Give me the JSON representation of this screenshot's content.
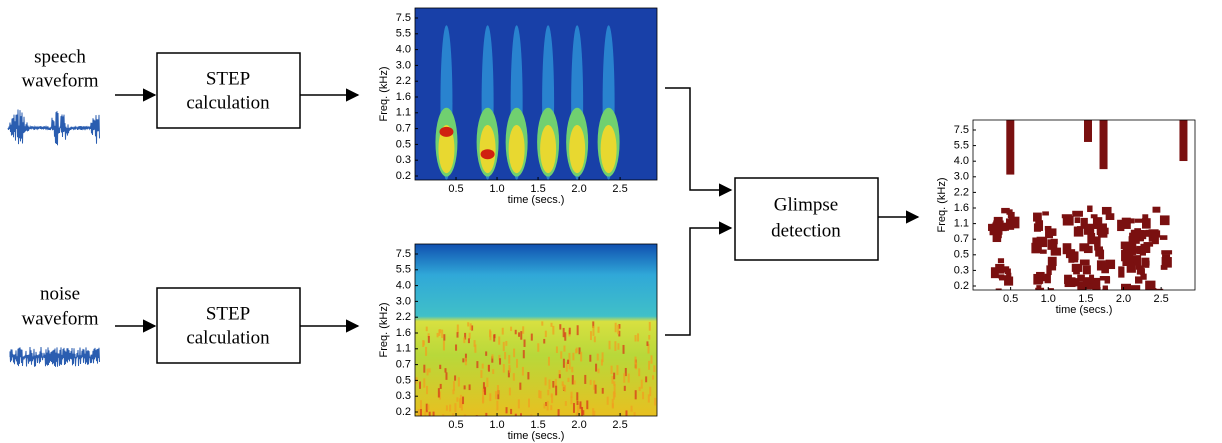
{
  "inputs": [
    {
      "label": [
        "speech",
        "waveform"
      ],
      "process": [
        "STEP",
        "calculation"
      ]
    },
    {
      "label": [
        "noise",
        "waveform"
      ],
      "process": [
        "STEP",
        "calculation"
      ]
    }
  ],
  "detector": [
    "Glimpse",
    "detection"
  ],
  "plots": [
    {
      "ylabel": "Freq. (kHz)",
      "xlabel": "time (secs.)",
      "yticks": [
        "0.2",
        "0.3",
        "0.5",
        "0.7",
        "1.1",
        "1.6",
        "2.2",
        "3.0",
        "4.0",
        "5.5",
        "7.5"
      ],
      "xticks": [
        "0.5",
        "1.0",
        "1.5",
        "2.0",
        "2.5"
      ]
    },
    {
      "ylabel": "Freq. (kHz)",
      "xlabel": "time (secs.)",
      "yticks": [
        "0.2",
        "0.3",
        "0.5",
        "0.7",
        "1.1",
        "1.6",
        "2.2",
        "3.0",
        "4.0",
        "5.5",
        "7.5"
      ],
      "xticks": [
        "0.5",
        "1.0",
        "1.5",
        "2.0",
        "2.5"
      ]
    },
    {
      "ylabel": "Freq. (kHz)",
      "xlabel": "time (secs.)",
      "yticks": [
        "0.2",
        "0.3",
        "0.5",
        "0.7",
        "1.1",
        "1.6",
        "2.2",
        "3.0",
        "4.0",
        "5.5",
        "7.5"
      ],
      "xticks": [
        "0.5",
        "1.0",
        "1.5",
        "2.0",
        "2.5"
      ]
    }
  ]
}
